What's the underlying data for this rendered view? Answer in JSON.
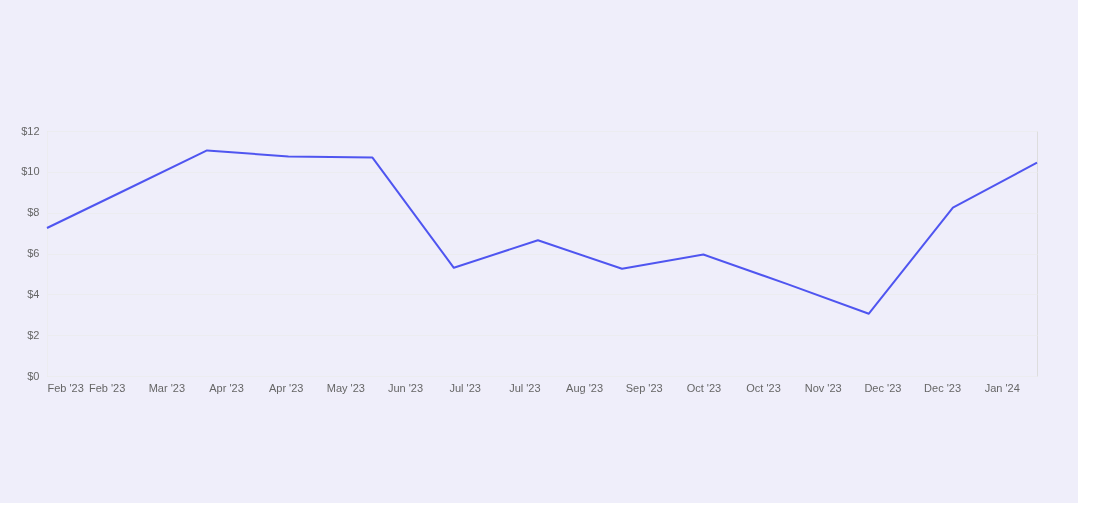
{
  "chart_data": {
    "type": "line",
    "x": [
      "2023-02-01",
      "2023-03-01",
      "2023-04-01",
      "2023-05-01",
      "2023-06-01",
      "2023-07-01",
      "2023-08-01",
      "2023-09-01",
      "2023-10-01",
      "2023-11-01",
      "2023-12-01",
      "2024-01-01",
      "2024-02-01"
    ],
    "series": [
      {
        "color": "#4f55f0",
        "values": [
          7.25,
          9.05,
          11.05,
          10.75,
          10.7,
          5.3,
          6.65,
          5.25,
          5.95,
          4.5,
          3.05,
          8.25,
          10.45
        ]
      }
    ],
    "xlim": [
      "2023-02-01",
      "2024-02-01"
    ],
    "xticks": [
      {
        "value": "2023-02-01",
        "label": "Feb '23"
      },
      {
        "value": "2023-02-23",
        "label": "Feb '23"
      },
      {
        "value": "2023-03-17",
        "label": "Mar '23"
      },
      {
        "value": "2023-04-08",
        "label": "Apr '23"
      },
      {
        "value": "2023-04-30",
        "label": "Apr '23"
      },
      {
        "value": "2023-05-22",
        "label": "May '23"
      },
      {
        "value": "2023-06-13",
        "label": "Jun '23"
      },
      {
        "value": "2023-07-05",
        "label": "Jul '23"
      },
      {
        "value": "2023-07-27",
        "label": "Jul '23"
      },
      {
        "value": "2023-08-18",
        "label": "Aug '23"
      },
      {
        "value": "2023-09-09",
        "label": "Sep '23"
      },
      {
        "value": "2023-10-01",
        "label": "Oct '23"
      },
      {
        "value": "2023-10-23",
        "label": "Oct '23"
      },
      {
        "value": "2023-11-14",
        "label": "Nov '23"
      },
      {
        "value": "2023-12-06",
        "label": "Dec '23"
      },
      {
        "value": "2023-12-28",
        "label": "Dec '23"
      },
      {
        "value": "2024-01-19",
        "label": "Jan '24"
      }
    ],
    "ylim": [
      0,
      12
    ],
    "yticks": [
      {
        "value": 0,
        "label": "$0"
      },
      {
        "value": 2,
        "label": "$2"
      },
      {
        "value": 4,
        "label": "$4"
      },
      {
        "value": 6,
        "label": "$6"
      },
      {
        "value": 8,
        "label": "$8"
      },
      {
        "value": 10,
        "label": "$10"
      },
      {
        "value": 12,
        "label": "$12"
      }
    ],
    "grid": "y",
    "marker": "none",
    "line_style": "solid"
  }
}
